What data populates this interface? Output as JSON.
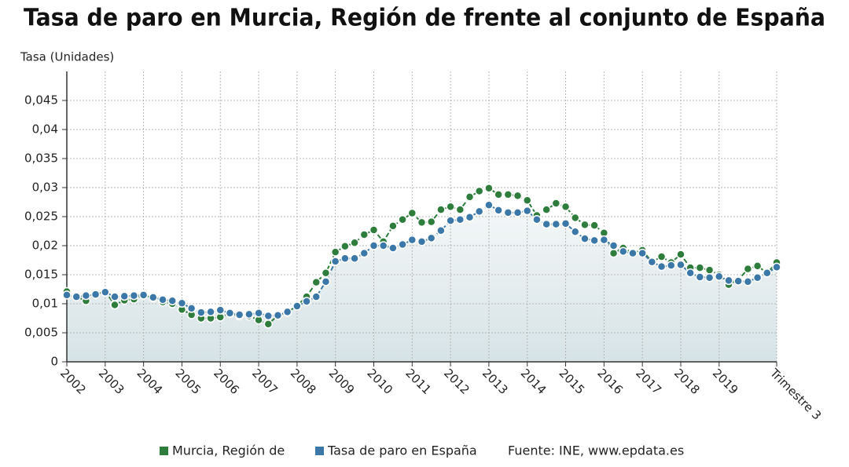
{
  "chart_data": {
    "type": "line",
    "title": "Tasa de paro en Murcia, Región de frente al conjunto de España",
    "y_label": "Tasa (Unidades)",
    "source": "Fuente: INE, www.epdata.es",
    "categories": [
      "2002",
      null,
      null,
      null,
      "2003",
      null,
      null,
      null,
      "2004",
      null,
      null,
      null,
      "2005",
      null,
      null,
      null,
      "2006",
      null,
      null,
      null,
      "2007",
      null,
      null,
      null,
      "2008",
      null,
      null,
      null,
      "2009",
      null,
      null,
      null,
      "2010",
      null,
      null,
      null,
      "2011",
      null,
      null,
      null,
      "2012",
      null,
      null,
      null,
      "2013",
      null,
      null,
      null,
      "2014",
      null,
      null,
      null,
      "2015",
      null,
      null,
      null,
      "2016",
      null,
      null,
      null,
      "2017",
      null,
      null,
      null,
      "2018",
      null,
      null,
      null,
      "2019",
      null,
      null,
      null,
      null,
      null,
      "Trimestre 3"
    ],
    "series": [
      {
        "name": "Murcia, Región de",
        "color": "#2e7d3c",
        "values": [
          0.0121,
          0.0112,
          0.0105,
          0.0116,
          0.0121,
          0.0098,
          0.0106,
          0.0108,
          0.0115,
          0.011,
          0.0103,
          0.01,
          0.009,
          0.0081,
          0.0075,
          0.0075,
          0.0077,
          0.0083,
          0.0079,
          0.0079,
          0.0072,
          0.0065,
          0.008,
          0.0085,
          0.0097,
          0.0112,
          0.0137,
          0.0153,
          0.0189,
          0.0199,
          0.0205,
          0.0219,
          0.0227,
          0.0207,
          0.0234,
          0.0245,
          0.0256,
          0.024,
          0.0241,
          0.0262,
          0.0267,
          0.0262,
          0.0284,
          0.0294,
          0.0299,
          0.0288,
          0.0288,
          0.0286,
          0.0278,
          0.0252,
          0.0262,
          0.0273,
          0.0267,
          0.0248,
          0.0236,
          0.0235,
          0.0222,
          0.0187,
          0.0196,
          0.0188,
          0.0192,
          0.0172,
          0.0181,
          0.0171,
          0.0185,
          0.0162,
          0.0162,
          0.0158,
          0.015,
          0.0133,
          0.0141,
          0.016,
          0.0165,
          0.0153,
          0.0171
        ]
      },
      {
        "name": "Tasa de paro en España",
        "color": "#3b78a8",
        "values": [
          0.0115,
          0.0112,
          0.0114,
          0.0116,
          0.012,
          0.0112,
          0.0113,
          0.0114,
          0.0115,
          0.0111,
          0.0107,
          0.0105,
          0.0101,
          0.0092,
          0.0085,
          0.0086,
          0.0089,
          0.0084,
          0.0081,
          0.0082,
          0.0084,
          0.0079,
          0.008,
          0.0086,
          0.0096,
          0.0104,
          0.0112,
          0.0138,
          0.0173,
          0.0178,
          0.0178,
          0.0187,
          0.02,
          0.02,
          0.0196,
          0.0202,
          0.021,
          0.0207,
          0.0213,
          0.0226,
          0.0243,
          0.0245,
          0.0249,
          0.0259,
          0.027,
          0.0261,
          0.0257,
          0.0257,
          0.026,
          0.0245,
          0.0237,
          0.0237,
          0.0238,
          0.0224,
          0.0212,
          0.0209,
          0.021,
          0.02,
          0.019,
          0.0187,
          0.0187,
          0.0172,
          0.0164,
          0.0166,
          0.0167,
          0.0153,
          0.0146,
          0.0145,
          0.0147,
          0.014,
          0.0139,
          0.0138,
          0.0145,
          0.0153,
          0.0163
        ]
      }
    ],
    "ylim": [
      0,
      0.05
    ],
    "yticks": [
      0,
      {
        "value": 0.005,
        "label": "0,005"
      },
      {
        "value": 0.01,
        "label": "0,01"
      },
      {
        "value": 0.015,
        "label": "0,015"
      },
      {
        "value": 0.02,
        "label": "0,02"
      },
      {
        "value": 0.025,
        "label": "0,025"
      },
      {
        "value": 0.03,
        "label": "0,03"
      },
      {
        "value": 0.035,
        "label": "0,035"
      },
      {
        "value": 0.04,
        "label": "0,04"
      },
      {
        "value": 0.045,
        "label": "0,045"
      }
    ],
    "grid": true,
    "area_under": 1,
    "legend": "bottom"
  }
}
